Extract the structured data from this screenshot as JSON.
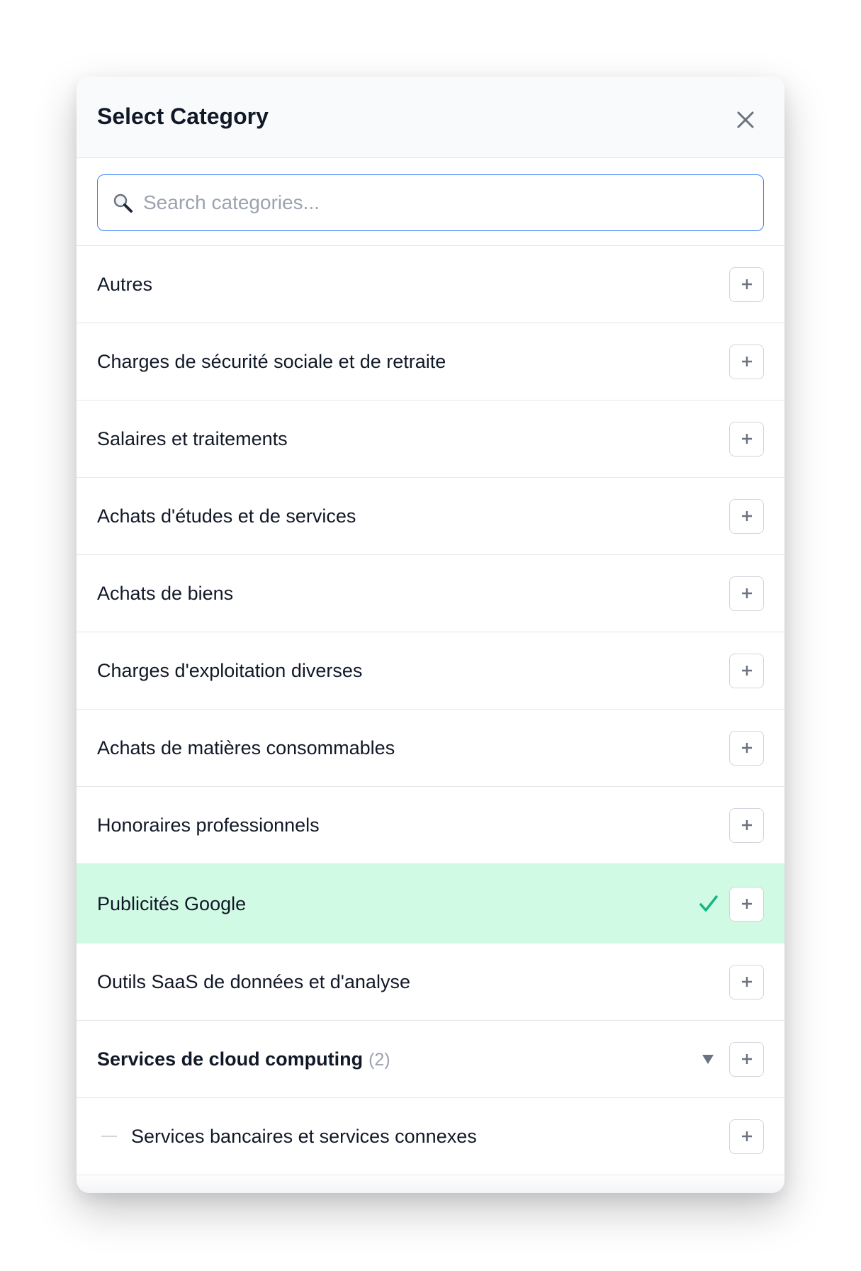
{
  "modal": {
    "title": "Select Category",
    "close_icon": "close-icon"
  },
  "search": {
    "placeholder": "Search categories...",
    "value": "",
    "icon": "search-icon"
  },
  "colors": {
    "accent": "#3b82f6",
    "selected_bg": "#d1fae5",
    "check": "#10b981"
  },
  "categories": [
    {
      "label": "Autres"
    },
    {
      "label": "Charges de sécurité sociale et de retraite"
    },
    {
      "label": "Salaires et traitements"
    },
    {
      "label": "Achats d'études et de services"
    },
    {
      "label": "Achats de biens"
    },
    {
      "label": "Charges d'exploitation diverses"
    },
    {
      "label": "Achats de matières consommables"
    },
    {
      "label": "Honoraires professionnels"
    },
    {
      "label": "Publicités Google",
      "selected": true
    },
    {
      "label": "Outils SaaS de données et d'analyse"
    },
    {
      "label": "Services de cloud computing",
      "count": "(2)",
      "expanded": true
    },
    {
      "label": "Services bancaires et services connexes",
      "child": true
    }
  ]
}
